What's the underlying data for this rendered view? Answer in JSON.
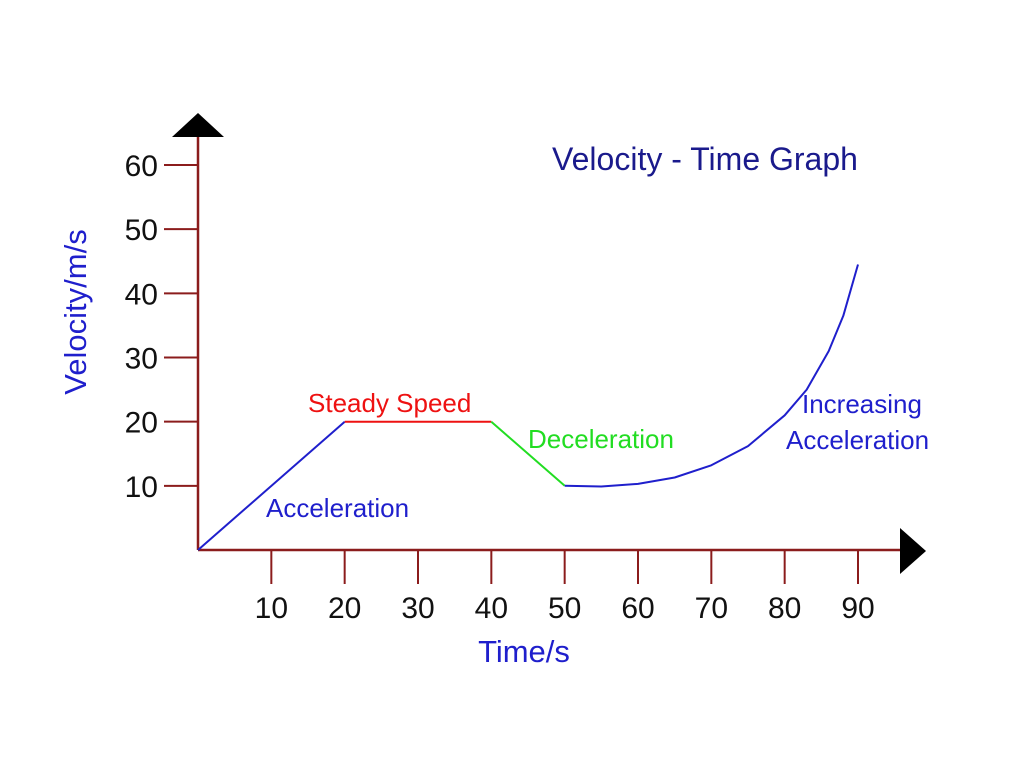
{
  "chart_data": {
    "type": "line",
    "title": "Velocity - Time Graph",
    "xlabel": "Time/s",
    "ylabel": "Velocity/m/s",
    "xlim": [
      0,
      90
    ],
    "ylim": [
      0,
      60
    ],
    "x_ticks": [
      10,
      20,
      30,
      40,
      50,
      60,
      70,
      80,
      90
    ],
    "y_ticks": [
      10,
      20,
      30,
      40,
      50,
      60
    ],
    "grid": false,
    "series": [
      {
        "name": "Acceleration",
        "color": "#1f1fcc",
        "points": [
          [
            0,
            0
          ],
          [
            20,
            20
          ]
        ]
      },
      {
        "name": "Steady Speed",
        "color": "#ee1111",
        "points": [
          [
            20,
            20
          ],
          [
            40,
            20
          ]
        ]
      },
      {
        "name": "Deceleration",
        "color": "#22dd22",
        "points": [
          [
            40,
            20
          ],
          [
            50,
            10
          ]
        ]
      },
      {
        "name": "Increasing Acceleration",
        "color": "#1f1fcc",
        "points": [
          [
            50,
            10
          ],
          [
            55,
            9.9
          ],
          [
            60,
            10.3
          ],
          [
            65,
            11.3
          ],
          [
            70,
            13.2
          ],
          [
            75,
            16.2
          ],
          [
            80,
            21
          ],
          [
            83,
            25
          ],
          [
            86,
            31
          ],
          [
            88,
            36.5
          ],
          [
            90,
            44.5
          ]
        ]
      }
    ],
    "annotations": [
      {
        "text": "Acceleration",
        "color": "#1f1fcc"
      },
      {
        "text": "Steady Speed",
        "color": "#ee1111"
      },
      {
        "text": "Deceleration",
        "color": "#22dd22"
      },
      {
        "text": "Increasing",
        "color": "#1f1fcc"
      },
      {
        "text": "Acceleration",
        "color": "#1f1fcc"
      }
    ],
    "colors": {
      "axis": "#8b1c1c",
      "title": "#1a1a8c",
      "axis_title": "#1f1fcc",
      "tick_text": "#111111",
      "arrow": "#000000"
    }
  }
}
